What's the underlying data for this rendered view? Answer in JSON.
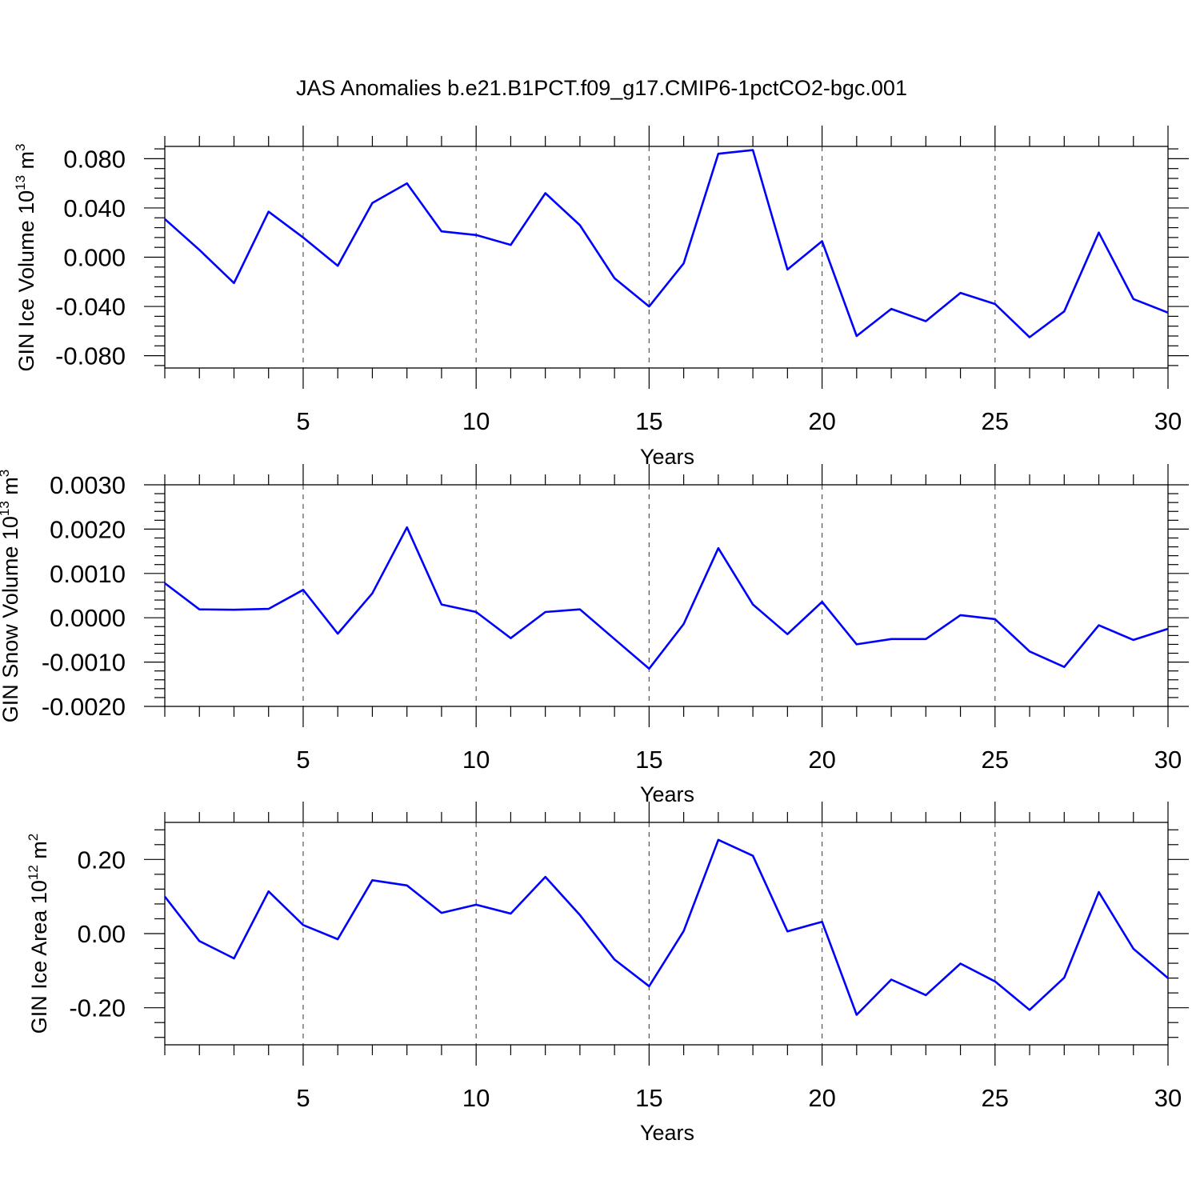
{
  "title": "JAS Anomalies b.e21.B1PCT.f09_g17.CMIP6-1pctCO2-bgc.001",
  "colors": {
    "line": "#0000ff",
    "axis": "#000000",
    "grid": "#555555"
  },
  "chart_data": [
    {
      "type": "line",
      "xlabel": "Years",
      "ylabel": {
        "main": "GIN Ice Volume 10",
        "exp": "13",
        "tail": " m",
        "unit_exp": "3"
      },
      "xlim": [
        1,
        30
      ],
      "ylim": [
        -0.09,
        0.09
      ],
      "grid": "dashed vertical at 5,10,15,20,25",
      "x_ticks": [
        5,
        10,
        15,
        20,
        25,
        30
      ],
      "x_tick_labels": [
        "5",
        "10",
        "15",
        "20",
        "25",
        "30"
      ],
      "y_ticks": [
        0.08,
        0.04,
        0.0,
        -0.04,
        -0.08
      ],
      "y_tick_labels": [
        "0.080",
        "0.040",
        "0.000",
        "-0.040",
        "-0.080"
      ],
      "x": [
        1,
        2,
        3,
        4,
        5,
        6,
        7,
        8,
        9,
        10,
        11,
        12,
        13,
        14,
        15,
        16,
        17,
        18,
        19,
        20,
        21,
        22,
        23,
        24,
        25,
        26,
        27,
        28,
        29,
        30
      ],
      "values": [
        0.031,
        0.006,
        -0.021,
        0.037,
        0.016,
        -0.007,
        0.044,
        0.06,
        0.021,
        0.018,
        0.01,
        0.052,
        0.026,
        -0.017,
        -0.04,
        -0.005,
        0.084,
        0.087,
        -0.01,
        0.013,
        -0.064,
        -0.042,
        -0.052,
        -0.029,
        -0.038,
        -0.065,
        -0.044,
        0.02,
        -0.034,
        -0.045
      ]
    },
    {
      "type": "line",
      "xlabel": "Years",
      "ylabel": {
        "main": "GIN Snow Volume 10",
        "exp": "13",
        "tail": " m",
        "unit_exp": "3"
      },
      "xlim": [
        1,
        30
      ],
      "ylim": [
        -0.002,
        0.003
      ],
      "grid": "dashed vertical at 5,10,15,20,25",
      "x_ticks": [
        5,
        10,
        15,
        20,
        25,
        30
      ],
      "x_tick_labels": [
        "5",
        "10",
        "15",
        "20",
        "25",
        "30"
      ],
      "y_ticks": [
        0.003,
        0.002,
        0.001,
        0.0,
        -0.001,
        -0.002
      ],
      "y_tick_labels": [
        "0.0030",
        "0.0020",
        "0.0010",
        "0.0000",
        "-0.0010",
        "-0.0020"
      ],
      "x": [
        1,
        2,
        3,
        4,
        5,
        6,
        7,
        8,
        9,
        10,
        11,
        12,
        13,
        14,
        15,
        16,
        17,
        18,
        19,
        20,
        21,
        22,
        23,
        24,
        25,
        26,
        27,
        28,
        29,
        30
      ],
      "values": [
        0.00078,
        0.00019,
        0.00018,
        0.0002,
        0.00063,
        -0.00036,
        0.00055,
        0.00204,
        0.0003,
        0.00013,
        -0.00046,
        0.00013,
        0.00019,
        -0.00048,
        -0.00115,
        -0.00014,
        0.00157,
        0.0003,
        -0.00037,
        0.00036,
        -0.0006,
        -0.00048,
        -0.00048,
        6e-05,
        -3e-05,
        -0.00076,
        -0.00111,
        -0.00017,
        -0.0005,
        -0.00025
      ]
    },
    {
      "type": "line",
      "xlabel": "Years",
      "ylabel": {
        "main": "GIN Ice Area 10",
        "exp": "12",
        "tail": " m",
        "unit_exp": "2"
      },
      "xlim": [
        1,
        30
      ],
      "ylim": [
        -0.3,
        0.3
      ],
      "grid": "dashed vertical at 5,10,15,20,25",
      "x_ticks": [
        5,
        10,
        15,
        20,
        25,
        30
      ],
      "x_tick_labels": [
        "5",
        "10",
        "15",
        "20",
        "25",
        "30"
      ],
      "y_ticks": [
        0.2,
        0.0,
        -0.2
      ],
      "y_tick_labels": [
        "0.20",
        "0.00",
        "-0.20"
      ],
      "x": [
        1,
        2,
        3,
        4,
        5,
        6,
        7,
        8,
        9,
        10,
        11,
        12,
        13,
        14,
        15,
        16,
        17,
        18,
        19,
        20,
        21,
        22,
        23,
        24,
        25,
        26,
        27,
        28,
        29,
        30
      ],
      "values": [
        0.1,
        -0.02,
        -0.067,
        0.114,
        0.023,
        -0.015,
        0.144,
        0.13,
        0.056,
        0.078,
        0.054,
        0.153,
        0.05,
        -0.07,
        -0.142,
        0.007,
        0.253,
        0.21,
        0.006,
        0.032,
        -0.219,
        -0.124,
        -0.166,
        -0.081,
        -0.129,
        -0.206,
        -0.119,
        0.112,
        -0.041,
        -0.12
      ]
    }
  ]
}
